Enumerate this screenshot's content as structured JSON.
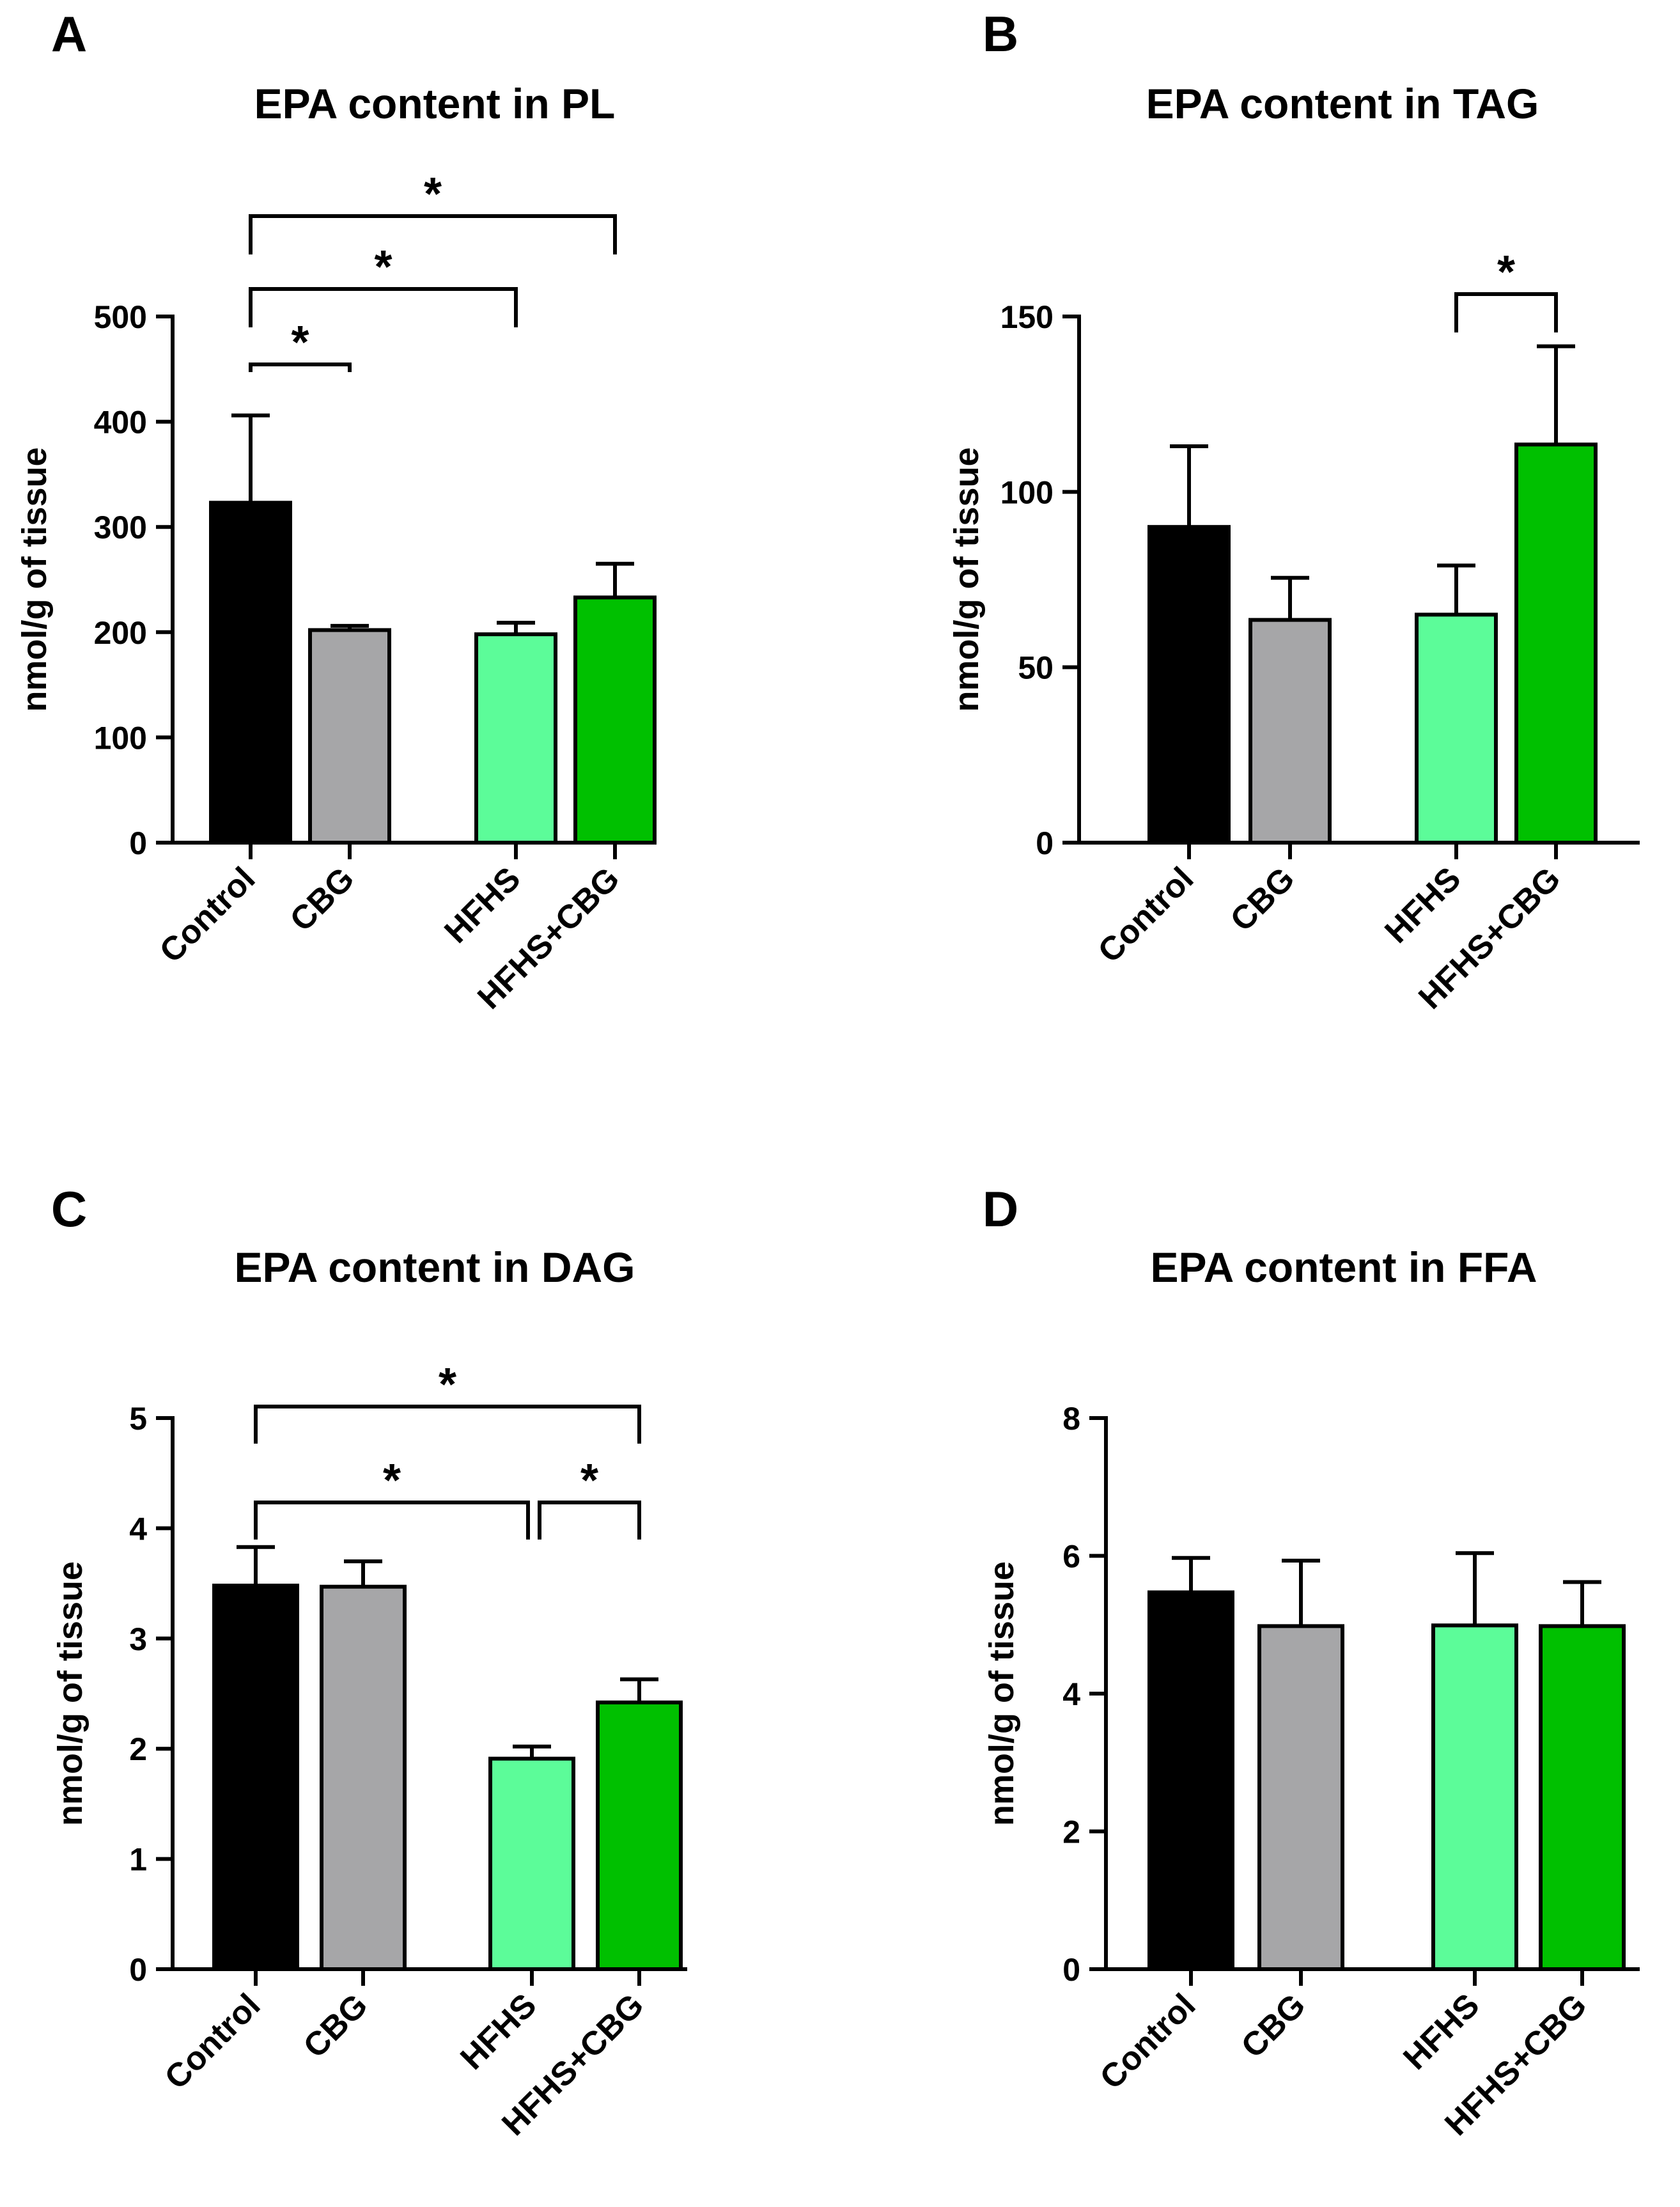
{
  "chart_data": [
    {
      "panel": "A",
      "type": "bar",
      "title": "EPA content in PL",
      "ylabel": "nmol/g of tissue",
      "xlabel": "",
      "categories": [
        "Control",
        "CBG",
        "HFHS",
        "HFHS+CBG"
      ],
      "values": [
        323,
        202,
        198,
        233
      ],
      "errors": [
        83,
        4,
        11,
        32
      ],
      "colors": [
        "#000000",
        "#a6a6a8",
        "#5cfc99",
        "#00c000"
      ],
      "ylim": [
        0,
        500
      ],
      "yticks": [
        "0",
        "100",
        "200",
        "300",
        "400",
        "500"
      ],
      "significance": [
        {
          "from": 0,
          "to": 1,
          "label": "*"
        },
        {
          "from": 0,
          "to": 2,
          "label": "*"
        },
        {
          "from": 0,
          "to": 3,
          "label": "*"
        }
      ]
    },
    {
      "panel": "B",
      "type": "bar",
      "title": "EPA content in TAG",
      "ylabel": "nmol/g of tissue",
      "xlabel": "",
      "categories": [
        "Control",
        "CBG",
        "HFHS",
        "HFHS+CBG"
      ],
      "values": [
        90,
        63.5,
        65,
        113.5
      ],
      "errors": [
        23,
        12,
        14,
        28
      ],
      "colors": [
        "#000000",
        "#a6a6a8",
        "#5cfc99",
        "#00c000"
      ],
      "ylim": [
        0,
        150
      ],
      "yticks": [
        "0",
        "50",
        "100",
        "150"
      ],
      "significance": [
        {
          "from": 2,
          "to": 3,
          "label": "*"
        }
      ]
    },
    {
      "panel": "C",
      "type": "bar",
      "title": "EPA content in DAG",
      "ylabel": "nmol/g of tissue",
      "xlabel": "",
      "categories": [
        "Control",
        "CBG",
        "HFHS",
        "HFHS+CBG"
      ],
      "values": [
        3.48,
        3.47,
        1.91,
        2.42
      ],
      "errors": [
        0.35,
        0.23,
        0.11,
        0.21
      ],
      "colors": [
        "#000000",
        "#a6a6a8",
        "#5cfc99",
        "#00c000"
      ],
      "ylim": [
        0,
        5
      ],
      "yticks": [
        "0",
        "1",
        "2",
        "3",
        "4",
        "5"
      ],
      "significance": [
        {
          "from": 0,
          "to": 2,
          "label": "*"
        },
        {
          "from": 2,
          "to": 3,
          "label": "*"
        },
        {
          "from": 0,
          "to": 3,
          "label": "*"
        }
      ]
    },
    {
      "panel": "D",
      "type": "bar",
      "title": "EPA content in FFA",
      "ylabel": "nmol/g of tissue",
      "xlabel": "",
      "categories": [
        "Control",
        "CBG",
        "HFHS",
        "HFHS+CBG"
      ],
      "values": [
        5.47,
        4.98,
        4.99,
        4.98
      ],
      "errors": [
        0.5,
        0.95,
        1.05,
        0.64
      ],
      "colors": [
        "#000000",
        "#a6a6a8",
        "#5cfc99",
        "#00c000"
      ],
      "ylim": [
        0,
        8
      ],
      "yticks": [
        "0",
        "2",
        "4",
        "6",
        "8"
      ],
      "significance": []
    }
  ]
}
